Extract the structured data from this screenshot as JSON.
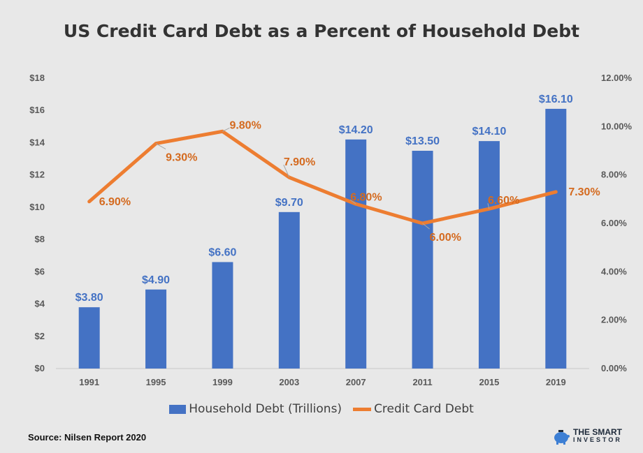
{
  "chart_data": {
    "type": "bar",
    "title": "US Credit Card Debt as a Percent of Household Debt",
    "categories": [
      "1991",
      "1995",
      "1999",
      "2003",
      "2007",
      "2011",
      "2015",
      "2019"
    ],
    "series": [
      {
        "name": "Household Debt (Trillions)",
        "type": "bar",
        "axis": "left",
        "values": [
          3.8,
          4.9,
          6.6,
          9.7,
          14.2,
          13.5,
          14.1,
          16.1
        ],
        "labels": [
          "$3.80",
          "$4.90",
          "$6.60",
          "$9.70",
          "$14.20",
          "$13.50",
          "$14.10",
          "$16.10"
        ],
        "color": "#4472c4"
      },
      {
        "name": "Credit Card Debt",
        "type": "line",
        "axis": "right",
        "values": [
          6.9,
          9.3,
          9.8,
          7.9,
          6.8,
          6.0,
          6.6,
          7.3
        ],
        "labels": [
          "6.90%",
          "9.30%",
          "9.80%",
          "7.90%",
          "6.80%",
          "6.00%",
          "6.60%",
          "7.30%"
        ],
        "color": "#ed7d31"
      }
    ],
    "y_left": {
      "ylim": [
        0,
        18
      ],
      "ticks": [
        "$0",
        "$2",
        "$4",
        "$6",
        "$8",
        "$10",
        "$12",
        "$14",
        "$16",
        "$18"
      ]
    },
    "y_right": {
      "ylim": [
        0,
        12
      ],
      "ticks": [
        "0.00%",
        "2.00%",
        "4.00%",
        "6.00%",
        "8.00%",
        "10.00%",
        "12.00%"
      ]
    },
    "grid": false,
    "legend_position": "bottom"
  },
  "source": "Source: Nilsen Report 2020",
  "logo": {
    "line1": "THE SMART",
    "line2": "INVESTOR"
  }
}
